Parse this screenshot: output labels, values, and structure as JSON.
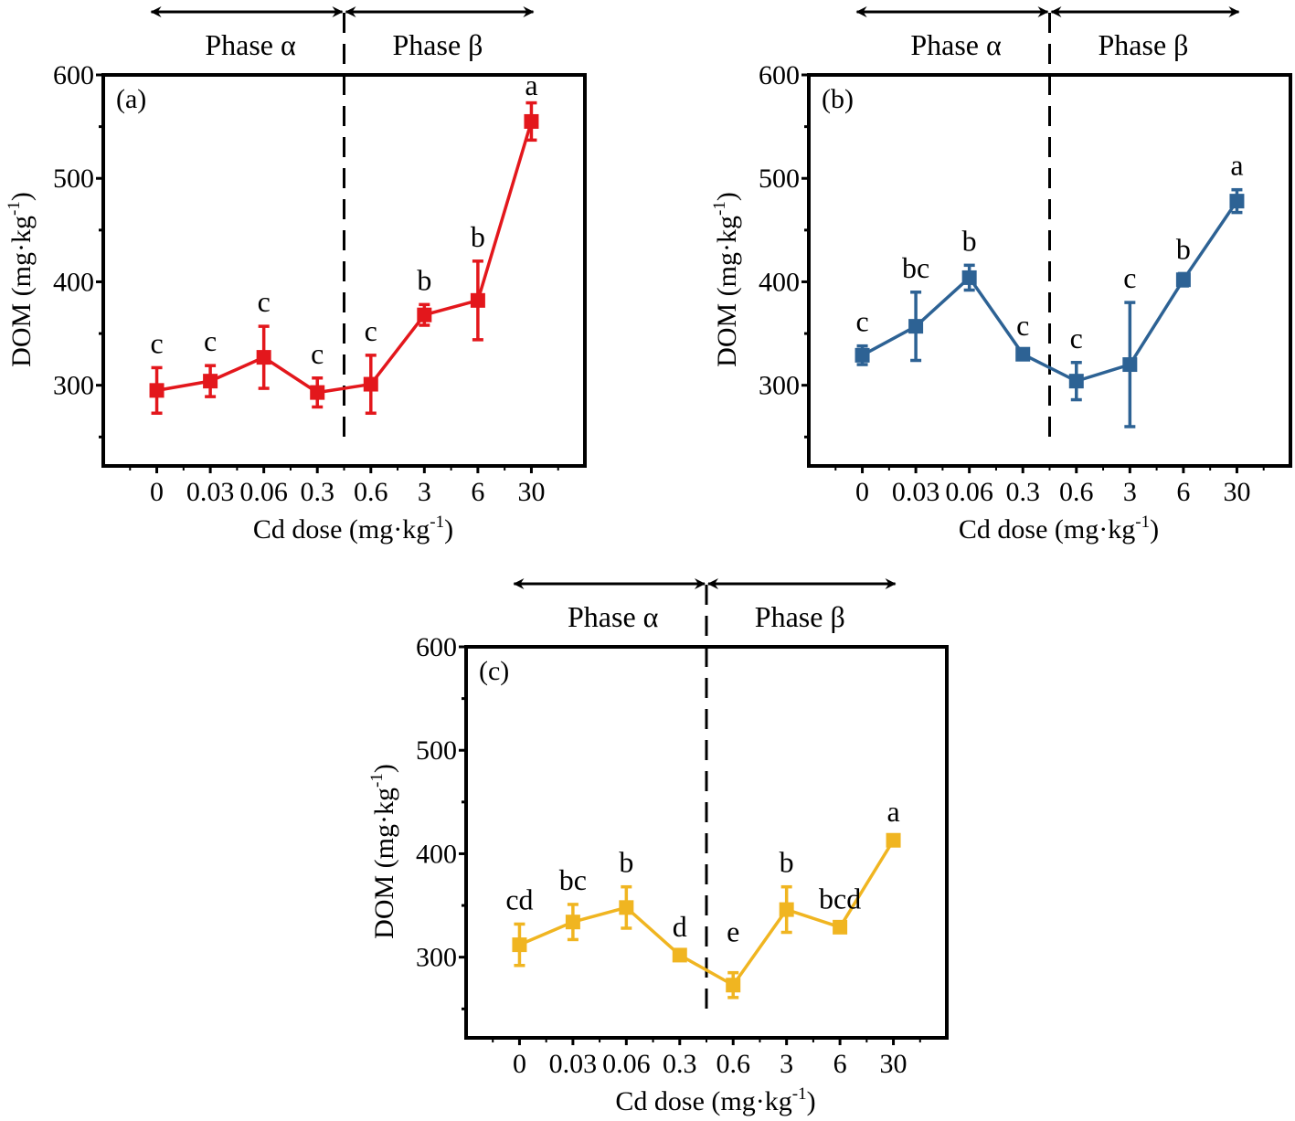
{
  "chart_data": [
    {
      "type": "line",
      "panel_label": "(a)",
      "color": "#e3171c",
      "categories": [
        "0",
        "0.03",
        "0.06",
        "0.3",
        "0.6",
        "3",
        "6",
        "30"
      ],
      "values": [
        295,
        304,
        327,
        293,
        301,
        368,
        382,
        555
      ],
      "errors": [
        22,
        15,
        30,
        14,
        28,
        10,
        38,
        18
      ],
      "letters": [
        "c",
        "c",
        "c",
        "c",
        "c",
        "b",
        "b",
        "a"
      ],
      "xlabel": "Cd dose (mg·kg",
      "xlabel_sup": "-1",
      "xlabel_end": ")",
      "ylabel": "DOM (mg·kg",
      "ylabel_sup": "-1",
      "ylabel_end": ")",
      "yticks": [
        300,
        400,
        500,
        600
      ],
      "ylim": [
        222,
        600
      ],
      "phases": [
        "Phase α",
        "Phase β"
      ]
    },
    {
      "type": "line",
      "panel_label": "(b)",
      "color": "#2d6294",
      "categories": [
        "0",
        "0.03",
        "0.06",
        "0.3",
        "0.6",
        "3",
        "6",
        "30"
      ],
      "values": [
        329,
        357,
        404,
        330,
        304,
        320,
        402,
        478
      ],
      "errors": [
        9,
        33,
        12,
        4,
        18,
        60,
        6,
        11
      ],
      "letters": [
        "c",
        "bc",
        "b",
        "c",
        "c",
        "c",
        "b",
        "a"
      ],
      "xlabel": "Cd dose (mg·kg",
      "xlabel_sup": "-1",
      "xlabel_end": ")",
      "ylabel": "DOM (mg·kg",
      "ylabel_sup": "-1",
      "ylabel_end": ")",
      "yticks": [
        300,
        400,
        500,
        600
      ],
      "ylim": [
        222,
        600
      ],
      "phases": [
        "Phase α",
        "Phase β"
      ]
    },
    {
      "type": "line",
      "panel_label": "(c)",
      "color": "#f0b521",
      "categories": [
        "0",
        "0.03",
        "0.06",
        "0.3",
        "0.6",
        "3",
        "6",
        "30"
      ],
      "values": [
        312,
        334,
        348,
        302,
        273,
        346,
        329,
        413
      ],
      "errors": [
        20,
        17,
        20,
        4,
        12,
        22,
        4,
        4
      ],
      "letters": [
        "cd",
        "bc",
        "b",
        "d",
        "e",
        "b",
        "bcd",
        "a"
      ],
      "xlabel": "Cd dose (mg·kg",
      "xlabel_sup": "-1",
      "xlabel_end": ")",
      "ylabel": "DOM (mg·kg",
      "ylabel_sup": "-1",
      "ylabel_end": ")",
      "yticks": [
        300,
        400,
        500,
        600
      ],
      "ylim": [
        222,
        600
      ],
      "phases": [
        "Phase α",
        "Phase β"
      ]
    }
  ]
}
